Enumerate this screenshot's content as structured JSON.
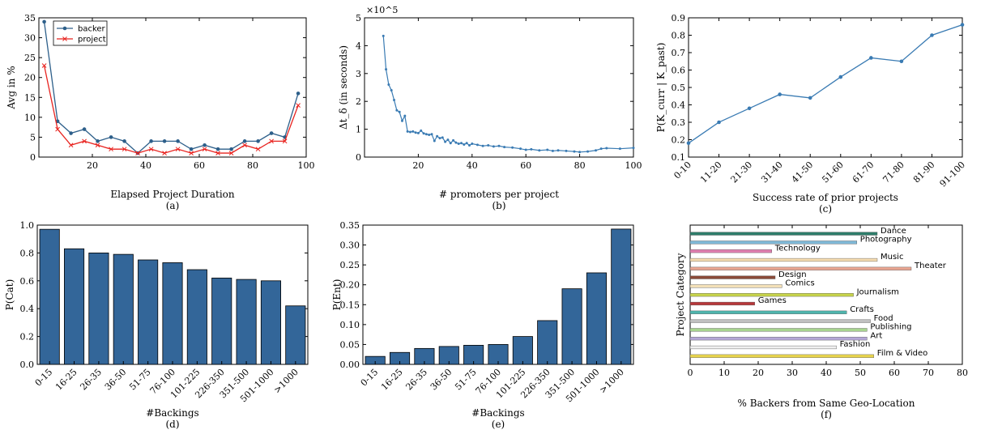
{
  "chart_data": [
    {
      "panel": "(a)",
      "type": "line",
      "xlabel": "Elapsed Project Duration",
      "ylabel": "Avg in %",
      "xlim": [
        0,
        100
      ],
      "ylim": [
        0,
        35
      ],
      "x_ticks": [
        20,
        40,
        60,
        80,
        100
      ],
      "y_ticks": [
        0,
        5,
        10,
        15,
        20,
        25,
        30,
        35
      ],
      "x": [
        2,
        7,
        12,
        17,
        22,
        27,
        32,
        37,
        42,
        47,
        52,
        57,
        62,
        67,
        72,
        77,
        82,
        87,
        92,
        97
      ],
      "series": [
        {
          "name": "backer",
          "color": "#2d5f8a",
          "marker": "circle",
          "values": [
            34,
            9,
            6,
            7,
            4,
            5,
            4,
            1,
            4,
            4,
            4,
            2,
            3,
            2,
            2,
            4,
            4,
            6,
            5,
            16
          ]
        },
        {
          "name": "project",
          "color": "#e8231f",
          "marker": "x",
          "values": [
            23,
            7,
            3,
            4,
            3,
            2,
            2,
            1,
            2,
            1,
            2,
            1,
            2,
            1,
            1,
            3,
            2,
            4,
            4,
            13
          ]
        }
      ],
      "legend": "top-left"
    },
    {
      "panel": "(b)",
      "type": "line",
      "xlabel": "# promoters per project",
      "ylabel": "Δt_δ (in seconds)",
      "multiplier": "×10^5",
      "xlim": [
        0,
        100
      ],
      "ylim": [
        0,
        5
      ],
      "x_ticks": [
        20,
        40,
        60,
        80,
        100
      ],
      "y_ticks": [
        0,
        1,
        2,
        3,
        4,
        5
      ],
      "series": [
        {
          "color": "#3a7bb3",
          "x": [
            7,
            8,
            9,
            10,
            11,
            12,
            13,
            14,
            15,
            16,
            17,
            18,
            19,
            20,
            21,
            22,
            23,
            24,
            25,
            26,
            27,
            28,
            29,
            30,
            31,
            32,
            33,
            34,
            35,
            36,
            37,
            38,
            39,
            40,
            42,
            44,
            46,
            48,
            50,
            52,
            55,
            58,
            60,
            62,
            65,
            68,
            70,
            72,
            75,
            78,
            80,
            83,
            86,
            88,
            90,
            95,
            100
          ],
          "y": [
            4.35,
            3.15,
            2.6,
            2.4,
            2.05,
            1.68,
            1.62,
            1.3,
            1.48,
            0.92,
            0.9,
            0.92,
            0.88,
            0.86,
            0.95,
            0.85,
            0.82,
            0.8,
            0.82,
            0.58,
            0.75,
            0.68,
            0.7,
            0.55,
            0.62,
            0.5,
            0.6,
            0.52,
            0.48,
            0.5,
            0.45,
            0.5,
            0.42,
            0.48,
            0.44,
            0.4,
            0.42,
            0.38,
            0.4,
            0.36,
            0.34,
            0.3,
            0.26,
            0.28,
            0.24,
            0.26,
            0.22,
            0.24,
            0.22,
            0.2,
            0.18,
            0.2,
            0.24,
            0.3,
            0.32,
            0.3,
            0.33
          ]
        }
      ]
    },
    {
      "panel": "(c)",
      "type": "line",
      "xlabel": "Success rate of prior projects",
      "ylabel": "P(K_curr | K_past)",
      "categories": [
        "0-10",
        "11-20",
        "21-30",
        "31-40",
        "41-50",
        "51-60",
        "61-70",
        "71-80",
        "81-90",
        "91-100"
      ],
      "ylim": [
        0.1,
        0.9
      ],
      "y_ticks": [
        0.1,
        0.2,
        0.3,
        0.4,
        0.5,
        0.6,
        0.7,
        0.8,
        0.9
      ],
      "values": [
        0.18,
        0.3,
        0.38,
        0.46,
        0.44,
        0.56,
        0.67,
        0.65,
        0.8,
        0.86
      ],
      "color": "#3a7bb3"
    },
    {
      "panel": "(d)",
      "type": "bar",
      "xlabel": "#Backings",
      "ylabel": "P(Cat)",
      "categories": [
        "0-15",
        "16-25",
        "26-35",
        "36-50",
        "51-75",
        "76-100",
        "101-225",
        "226-350",
        "351-500",
        "501-1000",
        ">1000"
      ],
      "values": [
        0.97,
        0.83,
        0.8,
        0.79,
        0.75,
        0.73,
        0.68,
        0.62,
        0.61,
        0.6,
        0.42
      ],
      "ylim": [
        0,
        1.0
      ],
      "y_ticks": [
        0.0,
        0.2,
        0.4,
        0.6,
        0.8,
        1.0
      ],
      "color": "#336699"
    },
    {
      "panel": "(e)",
      "type": "bar",
      "xlabel": "#Backings",
      "ylabel": "P(Ent)",
      "categories": [
        "0-15",
        "16-25",
        "26-35",
        "36-50",
        "51-75",
        "76-100",
        "101-225",
        "226-350",
        "351-500",
        "501-1000",
        ">1000"
      ],
      "values": [
        0.02,
        0.03,
        0.04,
        0.045,
        0.048,
        0.05,
        0.07,
        0.11,
        0.19,
        0.23,
        0.34
      ],
      "ylim": [
        0,
        0.35
      ],
      "y_ticks": [
        0.0,
        0.05,
        0.1,
        0.15,
        0.2,
        0.25,
        0.3,
        0.35
      ],
      "color": "#336699"
    },
    {
      "panel": "(f)",
      "type": "bar",
      "orientation": "horizontal",
      "xlabel": "% Backers from Same Geo-Location",
      "ylabel": "Project Category",
      "xlim": [
        0,
        80
      ],
      "x_ticks": [
        0,
        10,
        20,
        30,
        40,
        50,
        60,
        70,
        80
      ],
      "categories": [
        "Dance",
        "Photography",
        "Technology",
        "Music",
        "Theater",
        "Design",
        "Comics",
        "Journalism",
        "Games",
        "Crafts",
        "Food",
        "Publishing",
        "Art",
        "Fashion",
        "Film & Video"
      ],
      "values": [
        55,
        49,
        24,
        55,
        65,
        25,
        27,
        48,
        19,
        46,
        53,
        52,
        52,
        43,
        54
      ],
      "colors": [
        "#2e7d6a",
        "#7fb8d6",
        "#e07fb0",
        "#f5dcb0",
        "#e8a591",
        "#8a4b3a",
        "#f3e0b8",
        "#c7d44b",
        "#b8373a",
        "#4fb5ad",
        "#c0c0c0",
        "#a8d48f",
        "#b5a7d6",
        "#f0f0f0",
        "#e8d44d"
      ]
    }
  ],
  "panel_labels": [
    "(a)",
    "(b)",
    "(c)",
    "(d)",
    "(e)",
    "(f)"
  ]
}
